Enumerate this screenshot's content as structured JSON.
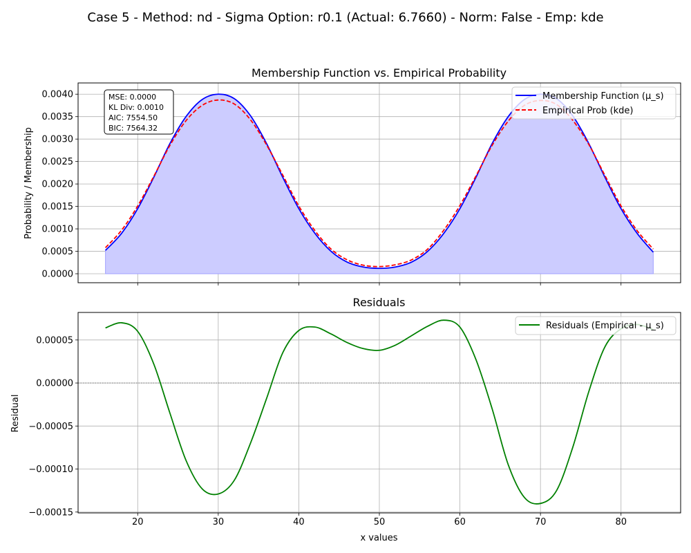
{
  "suptitle": "Case 5 - Method: nd - Sigma Option: r0.1 (Actual: 6.7660) - Norm: False - Emp: kde",
  "colors": {
    "membership": "#0000ff",
    "empirical": "#ff0000",
    "fill": "#ccccff",
    "residual": "#008000",
    "grid": "#b0b0b0",
    "zero_line": "#808080"
  },
  "chart_data": [
    {
      "type": "line",
      "title": "Membership Function vs. Empirical Probability",
      "xlabel": "",
      "ylabel": "Probability / Membership",
      "xlim": [
        12.6,
        87.4
      ],
      "ylim": [
        -0.0002,
        0.00425
      ],
      "xticks": [
        20,
        30,
        40,
        50,
        60,
        70,
        80
      ],
      "yticks": [
        0.0,
        0.0005,
        0.001,
        0.0015,
        0.002,
        0.0025,
        0.003,
        0.0035,
        0.004
      ],
      "ytick_labels": [
        "0.0000",
        "0.0005",
        "0.0010",
        "0.0015",
        "0.0020",
        "0.0025",
        "0.0030",
        "0.0035",
        "0.0040"
      ],
      "grid": true,
      "legend_position": "top-right",
      "stats_box": [
        "MSE: 0.0000",
        "KL Div: 0.0010",
        "AIC: 7554.50",
        "BIC: 7564.32"
      ],
      "series": [
        {
          "name": "Membership Function (μ_s)",
          "style": "solid",
          "filled": true,
          "x": [
            16,
            18,
            20,
            22,
            24,
            26,
            28,
            30,
            32,
            34,
            36,
            38,
            40,
            42,
            44,
            46,
            48,
            50,
            52,
            54,
            56,
            58,
            60,
            62,
            64,
            66,
            68,
            70,
            72,
            74,
            76,
            78,
            80,
            82,
            84
          ],
          "y": [
            0.00052,
            0.0009,
            0.00145,
            0.00215,
            0.0029,
            0.0035,
            0.00388,
            0.004,
            0.0039,
            0.00352,
            0.0029,
            0.00215,
            0.00145,
            0.0009,
            0.0005,
            0.00026,
            0.00015,
            0.00012,
            0.00015,
            0.00026,
            0.0005,
            0.0009,
            0.00145,
            0.00215,
            0.0029,
            0.0035,
            0.00388,
            0.004,
            0.0039,
            0.00352,
            0.0029,
            0.00215,
            0.00145,
            0.0009,
            0.00048
          ]
        },
        {
          "name": "Empirical Prob (kde)",
          "style": "dashed",
          "filled": false,
          "x": [
            16,
            18,
            20,
            22,
            24,
            26,
            28,
            30,
            32,
            34,
            36,
            38,
            40,
            42,
            44,
            46,
            48,
            50,
            52,
            54,
            56,
            58,
            60,
            62,
            64,
            66,
            68,
            70,
            72,
            74,
            76,
            78,
            80,
            82,
            84
          ],
          "y": [
            0.00058,
            0.00097,
            0.00151,
            0.00217,
            0.00286,
            0.00341,
            0.00375,
            0.00387,
            0.00378,
            0.00343,
            0.00287,
            0.0022,
            0.00151,
            0.00096,
            0.00055,
            0.00031,
            0.00019,
            0.00016,
            0.0002,
            0.00031,
            0.00055,
            0.00097,
            0.00152,
            0.00218,
            0.00286,
            0.0034,
            0.00375,
            0.00386,
            0.00377,
            0.00342,
            0.00288,
            0.00219,
            0.00151,
            0.00096,
            0.00055
          ]
        }
      ]
    },
    {
      "type": "line",
      "title": "Residuals",
      "xlabel": "x values",
      "ylabel": "Residual",
      "xlim": [
        12.6,
        87.4
      ],
      "ylim": [
        -0.000151,
        8.2e-05
      ],
      "xticks": [
        20,
        30,
        40,
        50,
        60,
        70,
        80
      ],
      "xtick_labels": [
        "20",
        "30",
        "40",
        "50",
        "60",
        "70",
        "80"
      ],
      "yticks": [
        -0.00015,
        -0.0001,
        -5e-05,
        0.0,
        5e-05
      ],
      "ytick_labels": [
        "−0.00015",
        "−0.00010",
        "−0.00005",
        "0.00000",
        "0.00005"
      ],
      "grid": true,
      "legend_position": "top-right",
      "series": [
        {
          "name": "Residuals (Empirical - μ_s)",
          "style": "solid",
          "x": [
            16,
            18,
            20,
            22,
            24,
            26,
            28,
            30,
            32,
            34,
            36,
            38,
            40,
            42,
            44,
            46,
            48,
            50,
            52,
            54,
            56,
            58,
            60,
            62,
            64,
            66,
            68,
            70,
            72,
            74,
            76,
            78,
            80,
            82,
            84
          ],
          "y": [
            6.4e-05,
            7e-05,
            6e-05,
            2.2e-05,
            -3.5e-05,
            -9e-05,
            -0.000123,
            -0.000129,
            -0.000113,
            -7e-05,
            -1.8e-05,
            3.5e-05,
            6.1e-05,
            6.5e-05,
            5.7e-05,
            4.7e-05,
            4e-05,
            3.8e-05,
            4.4e-05,
            5.5e-05,
            6.6e-05,
            7.3e-05,
            6.5e-05,
            2.7e-05,
            -3e-05,
            -9.5e-05,
            -0.000133,
            -0.00014,
            -0.000125,
            -7.5e-05,
            -1e-05,
            4.2e-05,
            6.3e-05,
            6.8e-05,
            6.2e-05
          ]
        }
      ],
      "reference_line": 0
    }
  ]
}
